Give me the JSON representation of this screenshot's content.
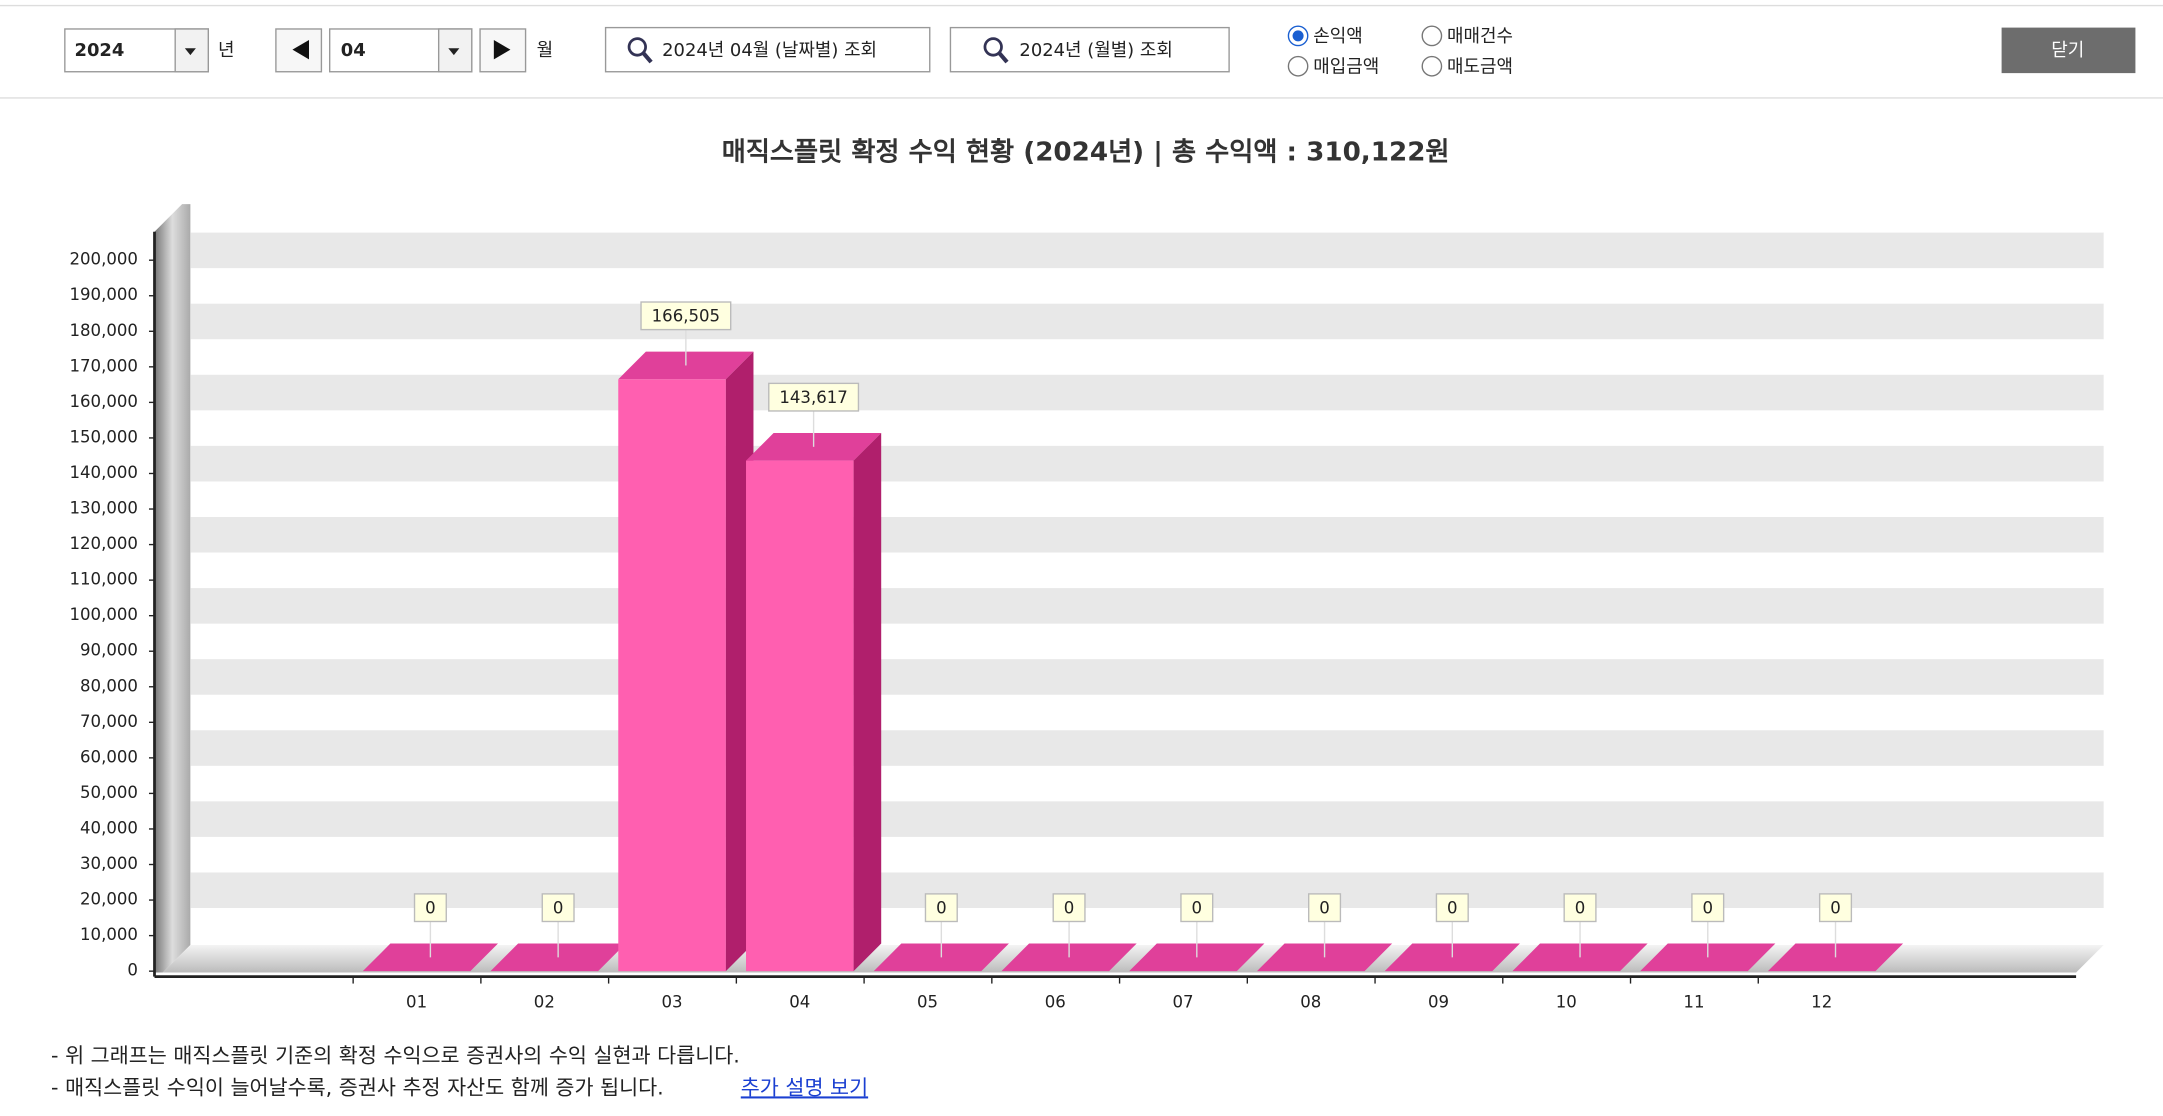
{
  "toolbar": {
    "year": "2024",
    "year_unit": "년",
    "month": "04",
    "month_unit": "월",
    "daily_button": "2024년 04월 (날짜별) 조회",
    "monthly_button": "2024년 (월별) 조회",
    "radios": [
      {
        "label": "손익액",
        "checked": true
      },
      {
        "label": "매매건수",
        "checked": false
      },
      {
        "label": "매입금액",
        "checked": false
      },
      {
        "label": "매도금액",
        "checked": false
      }
    ],
    "close": "닫기"
  },
  "chart_data": {
    "type": "bar",
    "title": "매직스플릿 확정 수익 현황 (2024년)  |  총 수익액 : 310,122원",
    "categories": [
      "01",
      "02",
      "03",
      "04",
      "05",
      "06",
      "07",
      "08",
      "09",
      "10",
      "11",
      "12"
    ],
    "values": [
      0,
      0,
      166505,
      143617,
      0,
      0,
      0,
      0,
      0,
      0,
      0,
      0
    ],
    "value_labels": [
      "0",
      "0",
      "166,505",
      "143,617",
      "0",
      "0",
      "0",
      "0",
      "0",
      "0",
      "0",
      "0"
    ],
    "color": "#ff5fb0",
    "ylim": [
      0,
      208000
    ],
    "yticks": [
      0,
      {
        "value": 10000,
        "label": "10,000"
      },
      {
        "value": 20000,
        "label": "20,000"
      },
      {
        "value": 30000,
        "label": "30,000"
      },
      {
        "value": 40000,
        "label": "40,000"
      },
      {
        "value": 50000,
        "label": "50,000"
      },
      {
        "value": 60000,
        "label": "60,000"
      },
      {
        "value": 70000,
        "label": "70,000"
      },
      {
        "value": 80000,
        "label": "80,000"
      },
      {
        "value": 90000,
        "label": "90,000"
      },
      {
        "value": 100000,
        "label": "100,000"
      },
      {
        "value": 110000,
        "label": "110,000"
      },
      {
        "value": 120000,
        "label": "120,000"
      },
      {
        "value": 130000,
        "label": "130,000"
      },
      {
        "value": 140000,
        "label": "140,000"
      },
      {
        "value": 150000,
        "label": "150,000"
      },
      {
        "value": 160000,
        "label": "160,000"
      },
      {
        "value": 170000,
        "label": "170,000"
      },
      {
        "value": 180000,
        "label": "180,000"
      },
      {
        "value": 190000,
        "label": "190,000"
      },
      {
        "value": 200000,
        "label": "200,000"
      }
    ],
    "grid": true
  },
  "notes": [
    "- 위 그래프는 매직스플릿 기준의 확정 수익으로 증권사의 수익 실현과 다릅니다.",
    "- 매직스플릿 수익이 늘어날수록, 증권사 추정 자산도 함께 증가 됩니다."
  ],
  "link": "추가 설명 보기"
}
